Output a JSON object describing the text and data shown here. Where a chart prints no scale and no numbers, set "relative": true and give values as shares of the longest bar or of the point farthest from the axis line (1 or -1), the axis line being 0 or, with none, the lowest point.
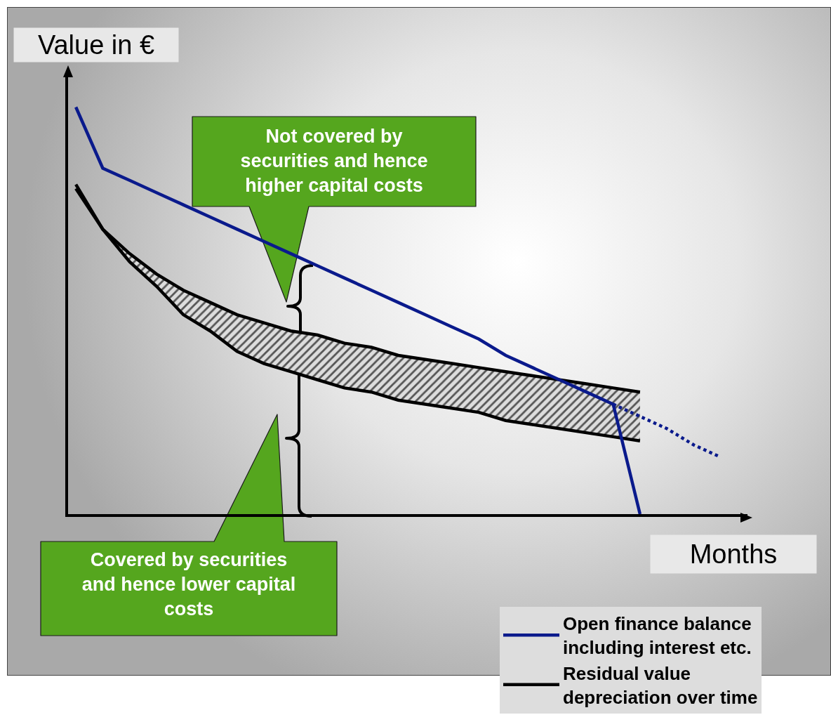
{
  "chart_data": {
    "type": "line",
    "relative": true,
    "legend": "bottom right",
    "xlabel": "Months",
    "ylabel": "Value in €",
    "categories": [
      null,
      null,
      null,
      null,
      null,
      null,
      null,
      null,
      null,
      null,
      null,
      null,
      null,
      null,
      null,
      null,
      null,
      null,
      null,
      null,
      null,
      null,
      null,
      null,
      null
    ],
    "series": [
      {
        "name": "Open finance balance including interest etc.",
        "color": "#0a1a8c",
        "values": [
          1.0,
          0.85,
          0.82,
          0.79,
          0.76,
          0.73,
          0.7,
          0.67,
          0.64,
          0.61,
          0.58,
          0.55,
          0.52,
          0.49,
          0.46,
          0.43,
          0.39,
          0.36,
          0.33,
          0.3,
          0.27,
          0,
          null,
          null,
          null
        ]
      },
      {
        "color": "#0a1a8c",
        "line_style": "dotted",
        "values": [
          null,
          null,
          null,
          null,
          null,
          null,
          null,
          null,
          null,
          null,
          null,
          null,
          null,
          null,
          null,
          null,
          null,
          null,
          null,
          null,
          0.27,
          0.24,
          0.21,
          0.17,
          0.14
        ]
      },
      {
        "name": "Residual value depreciation over time",
        "color": "#000000",
        "values": [
          0.81,
          0.7,
          0.64,
          0.59,
          0.55,
          0.52,
          0.49,
          0.47,
          0.45,
          0.44,
          0.42,
          0.41,
          0.39,
          0.38,
          0.37,
          0.36,
          0.35,
          0.34,
          0.33,
          0.32,
          0.31,
          0.3,
          null,
          null,
          null
        ],
        "upper": [
          0.81,
          0.7,
          0.64,
          0.59,
          0.55,
          0.52,
          0.49,
          0.47,
          0.45,
          0.44,
          0.42,
          0.41,
          0.39,
          0.38,
          0.37,
          0.36,
          0.35,
          0.34,
          0.33,
          0.32,
          0.31,
          0.3,
          null,
          null,
          null
        ],
        "lower": [
          0.8,
          0.7,
          0.62,
          0.56,
          0.49,
          0.45,
          0.4,
          0.37,
          0.35,
          0.33,
          0.31,
          0.3,
          0.28,
          0.27,
          0.26,
          0.25,
          0.23,
          0.22,
          0.21,
          0.2,
          0.19,
          0.18,
          null,
          null,
          null
        ]
      },
      {
        "color": "#000000",
        "values": [
          0.8,
          0.7,
          0.62,
          0.56,
          0.49,
          0.45,
          0.4,
          0.37,
          0.35,
          0.33,
          0.31,
          0.3,
          0.28,
          0.27,
          0.26,
          0.25,
          0.23,
          0.22,
          0.21,
          0.2,
          0.19,
          0.18,
          null,
          null,
          null
        ]
      }
    ],
    "annotations": [
      "Not covered by securities and hence higher capital costs",
      "Covered by securities and hence lower capital costs"
    ]
  }
}
